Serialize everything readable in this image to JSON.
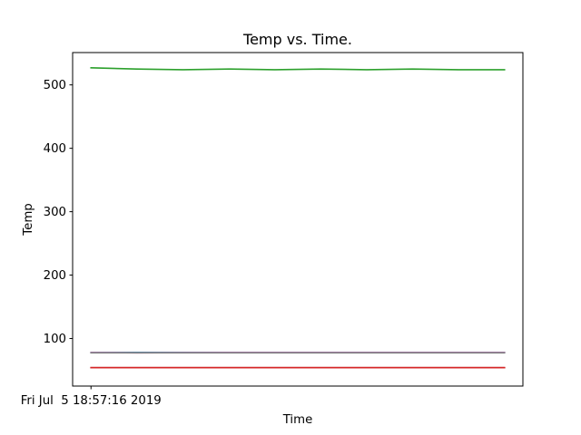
{
  "chart_data": {
    "type": "line",
    "title": "Temp vs. Time.",
    "xlabel": "Time",
    "ylabel": "Temp",
    "x_tick_labels": [
      "Fri Jul  5 18:57:16 2019"
    ],
    "x_tick_positions": [
      0
    ],
    "xlim": [
      -0.4,
      9.4
    ],
    "ylim": [
      25,
      551
    ],
    "y_ticks": [
      100,
      200,
      300,
      400,
      500
    ],
    "grid": false,
    "legend": "none",
    "x": [
      0,
      1,
      2,
      3,
      4,
      5,
      6,
      7,
      8,
      9
    ],
    "series": [
      {
        "color": "#2ca02c",
        "values": [
          527,
          525,
          524,
          525,
          524,
          525,
          524,
          525,
          524,
          524
        ]
      },
      {
        "color": "#1f77b4",
        "values": [
          78,
          78,
          78,
          78,
          78,
          78,
          78,
          78,
          78,
          78
        ]
      },
      {
        "color": "#e377c2",
        "values": [
          78,
          77.5,
          77.8,
          78,
          78,
          78,
          78,
          78,
          78,
          78
        ]
      },
      {
        "color": "#7f7f7f",
        "values": [
          77.5,
          77.5,
          77.5,
          77.5,
          77.5,
          77.5,
          77.5,
          77.5,
          77.5,
          77.5
        ]
      },
      {
        "color": "#ff7f0e",
        "values": [
          54,
          54,
          54,
          54,
          54,
          54,
          54,
          54,
          54,
          54
        ]
      },
      {
        "color": "#9467bd",
        "values": [
          54,
          54,
          54,
          54,
          54,
          54,
          54,
          54,
          54,
          54
        ]
      },
      {
        "color": "#d62728",
        "values": [
          54,
          54,
          54,
          54,
          54,
          54,
          54,
          54,
          54,
          54
        ]
      }
    ]
  }
}
